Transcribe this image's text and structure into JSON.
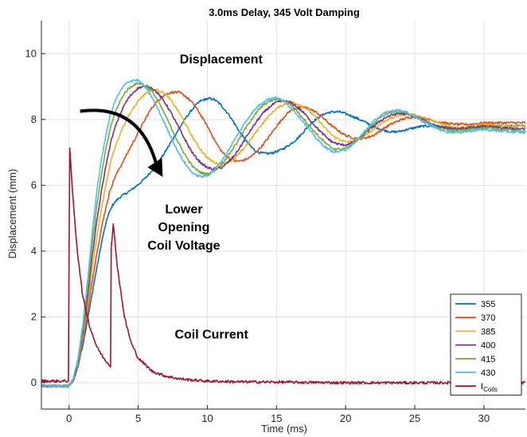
{
  "chart_data": {
    "type": "line",
    "title": "3.0ms Delay, 345 Volt Damping",
    "xlabel": "Time (ms)",
    "ylabel": "Displacement (mm)",
    "xlim": [
      -2,
      33
    ],
    "ylim": [
      -0.8,
      11
    ],
    "xticks": [
      0,
      5,
      10,
      15,
      20,
      25,
      30
    ],
    "yticks": [
      0,
      2,
      4,
      6,
      8,
      10
    ],
    "grid": true,
    "legend_position": "bottom-right",
    "annotations": [
      {
        "text": "Displacement",
        "x": 11,
        "y": 9.7
      },
      {
        "text": "Lower",
        "x": 8.3,
        "y": 5.15
      },
      {
        "text": "Opening",
        "x": 8.3,
        "y": 4.6
      },
      {
        "text": "Coil Voltage",
        "x": 8.3,
        "y": 4.05
      },
      {
        "text": "Coil Current",
        "x": 10.3,
        "y": 1.35
      }
    ],
    "series": [
      {
        "name": "355",
        "color": "#0072BD",
        "x": [
          -2,
          0.3,
          1,
          2,
          2.8,
          3.5,
          4.5,
          5.5,
          6.5,
          7.5,
          8.5,
          9.5,
          10.5,
          11.5,
          12.5,
          13.5,
          14.5,
          15.5,
          16.5,
          17.5,
          18.5,
          19.5,
          20.5,
          21.5,
          22.5,
          23.5,
          24.5,
          25.5,
          26.5,
          27.5,
          28.5,
          29.5,
          30.5,
          31.5,
          33
        ],
        "y": [
          -0.1,
          -0.1,
          1.1,
          3.5,
          5.2,
          5.6,
          5.85,
          6.2,
          6.7,
          7.4,
          8.1,
          8.6,
          8.65,
          8.2,
          7.5,
          7.0,
          6.95,
          7.1,
          7.4,
          7.9,
          8.2,
          8.25,
          8.1,
          7.9,
          7.7,
          7.6,
          7.7,
          7.8,
          7.8,
          7.75,
          7.7,
          7.75,
          7.8,
          7.8,
          7.8
        ]
      },
      {
        "name": "370",
        "color": "#D95319",
        "x": [
          -2,
          0.3,
          1,
          2,
          3,
          4,
          5,
          6,
          7,
          8,
          9,
          10,
          11,
          12,
          13,
          14,
          15,
          16,
          17,
          18,
          19,
          20,
          21,
          22,
          23,
          24,
          25,
          26,
          27,
          28,
          29,
          30,
          31,
          33
        ],
        "y": [
          -0.1,
          -0.1,
          1.2,
          4.0,
          6.0,
          6.8,
          7.6,
          8.4,
          8.8,
          8.85,
          8.5,
          7.8,
          7.0,
          6.7,
          6.8,
          7.2,
          7.8,
          8.3,
          8.4,
          8.2,
          7.8,
          7.5,
          7.4,
          7.5,
          7.8,
          8.0,
          8.1,
          8.0,
          7.9,
          7.85,
          7.85,
          7.9,
          7.9,
          7.9
        ]
      },
      {
        "name": "385",
        "color": "#EDB120",
        "x": [
          -2,
          0.3,
          1,
          2,
          3,
          4,
          5,
          6,
          7,
          8,
          9,
          10,
          11,
          12,
          13,
          14,
          15,
          16,
          17,
          18,
          19,
          20,
          21,
          22,
          23,
          24,
          25,
          26,
          27,
          28,
          29,
          30,
          31,
          33
        ],
        "y": [
          -0.1,
          -0.1,
          1.3,
          4.5,
          6.8,
          7.9,
          8.6,
          8.95,
          8.8,
          8.2,
          7.4,
          6.8,
          6.6,
          6.8,
          7.3,
          7.9,
          8.35,
          8.55,
          8.4,
          8.0,
          7.5,
          7.3,
          7.4,
          7.7,
          8.0,
          8.15,
          8.15,
          8.0,
          7.85,
          7.75,
          7.8,
          7.85,
          7.8,
          7.8
        ]
      },
      {
        "name": "400",
        "color": "#7E2F8E",
        "x": [
          -2,
          0.3,
          1,
          2,
          3,
          4,
          5,
          6,
          7,
          8,
          9,
          10,
          11,
          12,
          13,
          14,
          15,
          16,
          17,
          18,
          19,
          20,
          21,
          22,
          23,
          24,
          25,
          26,
          27,
          28,
          29,
          30,
          31,
          33
        ],
        "y": [
          -0.1,
          -0.1,
          1.4,
          5.0,
          7.4,
          8.5,
          9.0,
          9.0,
          8.5,
          7.7,
          6.9,
          6.5,
          6.5,
          6.9,
          7.6,
          8.2,
          8.55,
          8.55,
          8.2,
          7.7,
          7.3,
          7.2,
          7.4,
          7.8,
          8.1,
          8.2,
          8.1,
          7.9,
          7.75,
          7.7,
          7.75,
          7.8,
          7.75,
          7.7
        ]
      },
      {
        "name": "415",
        "color": "#77AC30",
        "x": [
          -2,
          0.3,
          1,
          2,
          3,
          4,
          5,
          6,
          7,
          8,
          9,
          10,
          11,
          12,
          13,
          14,
          15,
          16,
          17,
          18,
          19,
          20,
          21,
          22,
          23,
          24,
          25,
          26,
          27,
          28,
          29,
          30,
          31,
          33
        ],
        "y": [
          -0.1,
          -0.1,
          1.5,
          5.5,
          7.9,
          8.85,
          9.15,
          8.9,
          8.1,
          7.2,
          6.5,
          6.3,
          6.6,
          7.2,
          7.9,
          8.45,
          8.65,
          8.5,
          8.0,
          7.5,
          7.1,
          7.1,
          7.4,
          7.9,
          8.2,
          8.25,
          8.1,
          7.85,
          7.7,
          7.65,
          7.7,
          7.75,
          7.7,
          7.65
        ]
      },
      {
        "name": "430",
        "color": "#4DBEEE",
        "x": [
          -2,
          0.3,
          1,
          2,
          3,
          4,
          5,
          6,
          7,
          8,
          9,
          10,
          11,
          12,
          13,
          14,
          15,
          16,
          17,
          18,
          19,
          20,
          21,
          22,
          23,
          24,
          25,
          26,
          27,
          28,
          29,
          30,
          31,
          33
        ],
        "y": [
          -0.1,
          -0.1,
          1.6,
          6.0,
          8.3,
          9.1,
          9.25,
          8.7,
          7.8,
          6.9,
          6.3,
          6.25,
          6.7,
          7.4,
          8.1,
          8.55,
          8.7,
          8.4,
          7.9,
          7.35,
          7.0,
          7.05,
          7.45,
          7.95,
          8.25,
          8.3,
          8.1,
          7.85,
          7.65,
          7.6,
          7.65,
          7.7,
          7.65,
          7.6
        ]
      },
      {
        "name": "I_Coils",
        "display_name": "I",
        "subscript": "Coils",
        "color": "#A2142F",
        "x": [
          -2,
          -0.05,
          0.05,
          0.3,
          0.6,
          1,
          1.5,
          2,
          2.5,
          3,
          3.02,
          3.2,
          3.5,
          4,
          4.5,
          5,
          6,
          7,
          8,
          9,
          10,
          12,
          15,
          20,
          25,
          30,
          33
        ],
        "y": [
          0.05,
          0.05,
          7.1,
          5.5,
          4.0,
          2.6,
          1.7,
          1.1,
          0.75,
          0.5,
          4.0,
          4.8,
          3.5,
          2.0,
          1.2,
          0.75,
          0.35,
          0.2,
          0.12,
          0.08,
          0.05,
          0.03,
          0.02,
          0.0,
          0.0,
          0.0,
          0.0
        ]
      }
    ]
  }
}
